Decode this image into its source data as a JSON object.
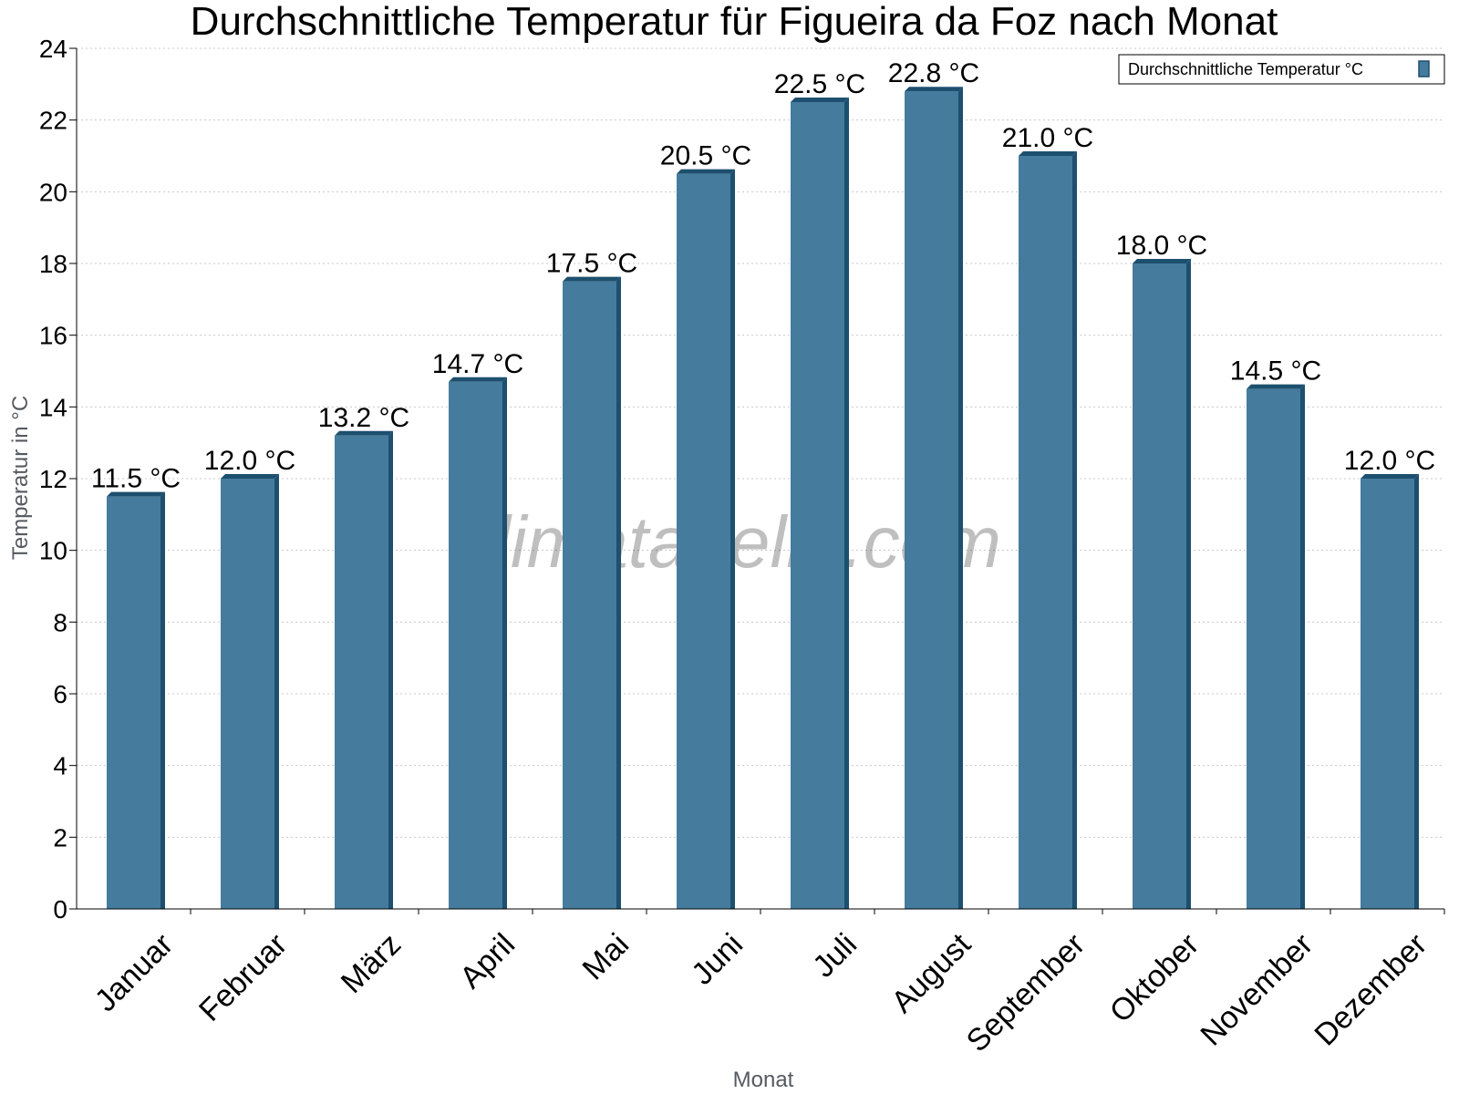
{
  "chart_data": {
    "type": "bar",
    "title": "Durchschnittliche Temperatur für Figueira da Foz nach Monat",
    "xlabel": "Monat",
    "ylabel": "Temperatur in °C",
    "ylim": [
      0,
      24
    ],
    "ytick_step": 2,
    "grid": true,
    "legend_position": "top-right",
    "categories": [
      "Januar",
      "Februar",
      "März",
      "April",
      "Mai",
      "Juni",
      "Juli",
      "August",
      "September",
      "Oktober",
      "November",
      "Dezember"
    ],
    "series": [
      {
        "name": "Durchschnittliche Temperatur °C",
        "values": [
          11.5,
          12.0,
          13.2,
          14.7,
          17.5,
          20.5,
          22.5,
          22.8,
          21.0,
          18.0,
          14.5,
          12.0
        ],
        "labels": [
          "11.5 °C",
          "12.0 °C",
          "13.2 °C",
          "14.7 °C",
          "17.5 °C",
          "20.5 °C",
          "22.5 °C",
          "22.8 °C",
          "21.0 °C",
          "18.0 °C",
          "14.5 °C",
          "12.0 °C"
        ],
        "color": "#457b9d",
        "edge_color": "#1d4f6e"
      }
    ],
    "watermark": "klimatabelle.com"
  }
}
